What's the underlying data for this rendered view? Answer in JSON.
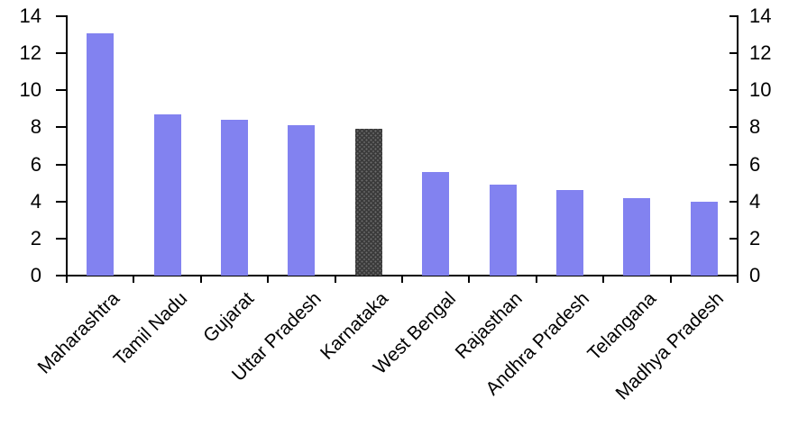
{
  "chart_data": {
    "type": "bar",
    "title": "",
    "xlabel": "",
    "ylabel": "",
    "categories": [
      "Maharashtra",
      "Tamil Nadu",
      "Gujarat",
      "Uttar Pradesh",
      "Karnataka",
      "West Bengal",
      "Rajasthan",
      "Andhra Pradesh",
      "Telangana",
      "Madhya Pradesh"
    ],
    "values": [
      13.1,
      8.7,
      8.4,
      8.1,
      7.9,
      5.6,
      4.9,
      4.6,
      4.2,
      4.0
    ],
    "highlight_category": "Karnataka",
    "highlight_index": 4,
    "ylim": [
      0,
      14
    ],
    "ytick_step": 2,
    "yticks_left": [
      "0",
      "2",
      "4",
      "6",
      "8",
      "10",
      "12",
      "14"
    ],
    "yticks_right": [
      "0",
      "2",
      "4",
      "6",
      "8",
      "10",
      "12",
      "14"
    ],
    "grid": false,
    "legend_position": "none",
    "axes": [
      "left",
      "right",
      "bottom"
    ],
    "colors": {
      "bar": "#8282F0",
      "highlight_bar": "#3B3B3B",
      "highlight_dots": "#969696",
      "axis": "#000000",
      "text": "#000000",
      "background": "#FFFFFF"
    }
  }
}
